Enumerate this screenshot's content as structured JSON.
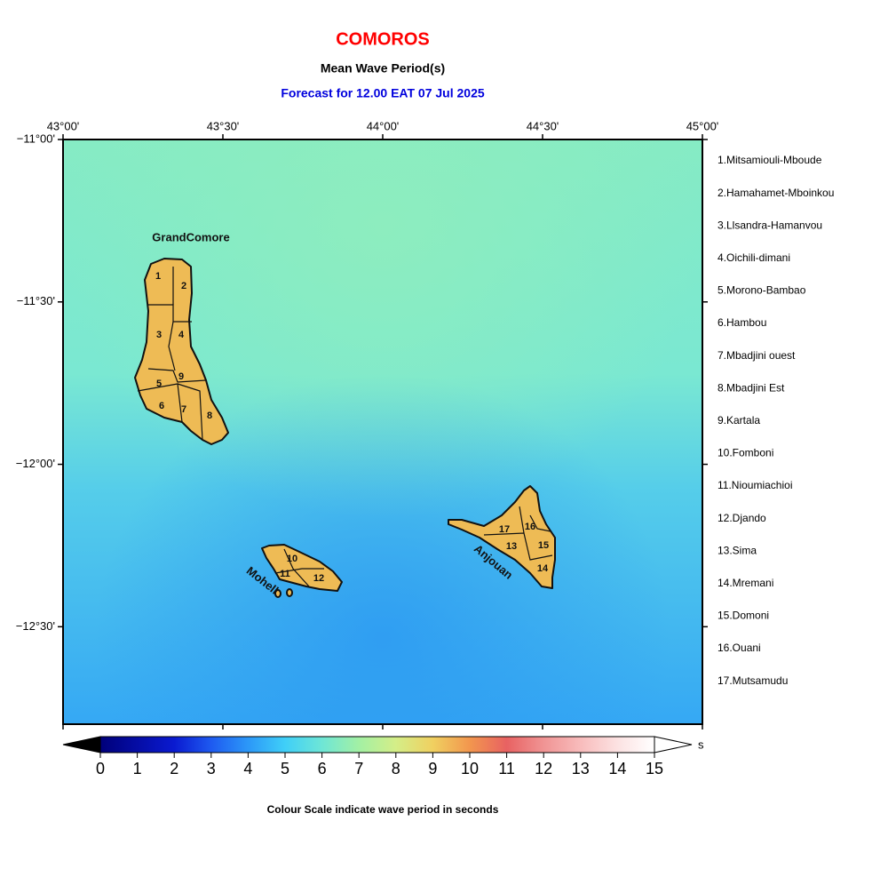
{
  "header": {
    "title": "COMOROS",
    "subtitle": "Mean Wave Period(s)",
    "forecast": "Forecast for  12.00 EAT 07 Jul 2025"
  },
  "map": {
    "lonlim": [
      43,
      45
    ],
    "latlim": [
      -11,
      -12.8
    ],
    "lon_ticks": [
      {
        "value": 43,
        "label": "43°00'"
      },
      {
        "value": 43.5,
        "label": "43°30'"
      },
      {
        "value": 44,
        "label": "44°00'"
      },
      {
        "value": 44.5,
        "label": "44°30'"
      },
      {
        "value": 45,
        "label": "45°00'"
      }
    ],
    "lat_ticks": [
      {
        "value": -11,
        "label": "−11°00'"
      },
      {
        "value": -11.5,
        "label": "−11°30'"
      },
      {
        "value": -12,
        "label": "−12°00'"
      },
      {
        "value": -12.5,
        "label": "−12°30'"
      }
    ],
    "islands": [
      "GrandComore",
      "Mohell",
      "Anjouan"
    ],
    "region_numbers": [
      "1",
      "2",
      "3",
      "4",
      "5",
      "6",
      "7",
      "8",
      "9",
      "10",
      "11",
      "12",
      "13",
      "14",
      "15",
      "16",
      "17"
    ]
  },
  "regions": [
    "1.Mitsamiouli-Mboude",
    "2.Hamahamet-Mboinkou",
    "3.Llsandra-Hamanvou",
    "4.Oichili-dimani",
    "5.Morono-Bambao",
    "6.Hambou",
    "7.Mbadjini ouest",
    "8.Mbadjini Est",
    "9.Kartala",
    "10.Fomboni",
    "11.Nioumiachioi",
    "12.Djando",
    "13.Sima",
    "14.Mremani",
    "15.Domoni",
    "16.Ouani",
    "17.Mutsamudu"
  ],
  "colorbar": {
    "range": [
      0,
      15
    ],
    "ticks": [
      0,
      1,
      2,
      3,
      4,
      5,
      6,
      7,
      8,
      9,
      10,
      11,
      12,
      13,
      14,
      15
    ],
    "unit": "s",
    "caption": "Colour Scale indicate wave period in seconds"
  }
}
